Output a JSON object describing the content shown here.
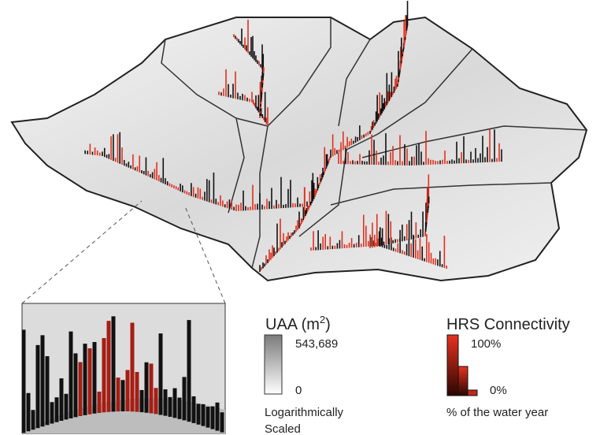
{
  "legend_uaa": {
    "title_parts": [
      "UAA (m",
      "2",
      ")"
    ],
    "max_label": "543,689",
    "min_label": "0",
    "note_lines": [
      "Logarithmically",
      "Scaled"
    ]
  },
  "legend_hrs": {
    "title": "HRS Connectivity",
    "max_label": "100%",
    "min_label": "0%",
    "note": "% of the water year"
  }
}
